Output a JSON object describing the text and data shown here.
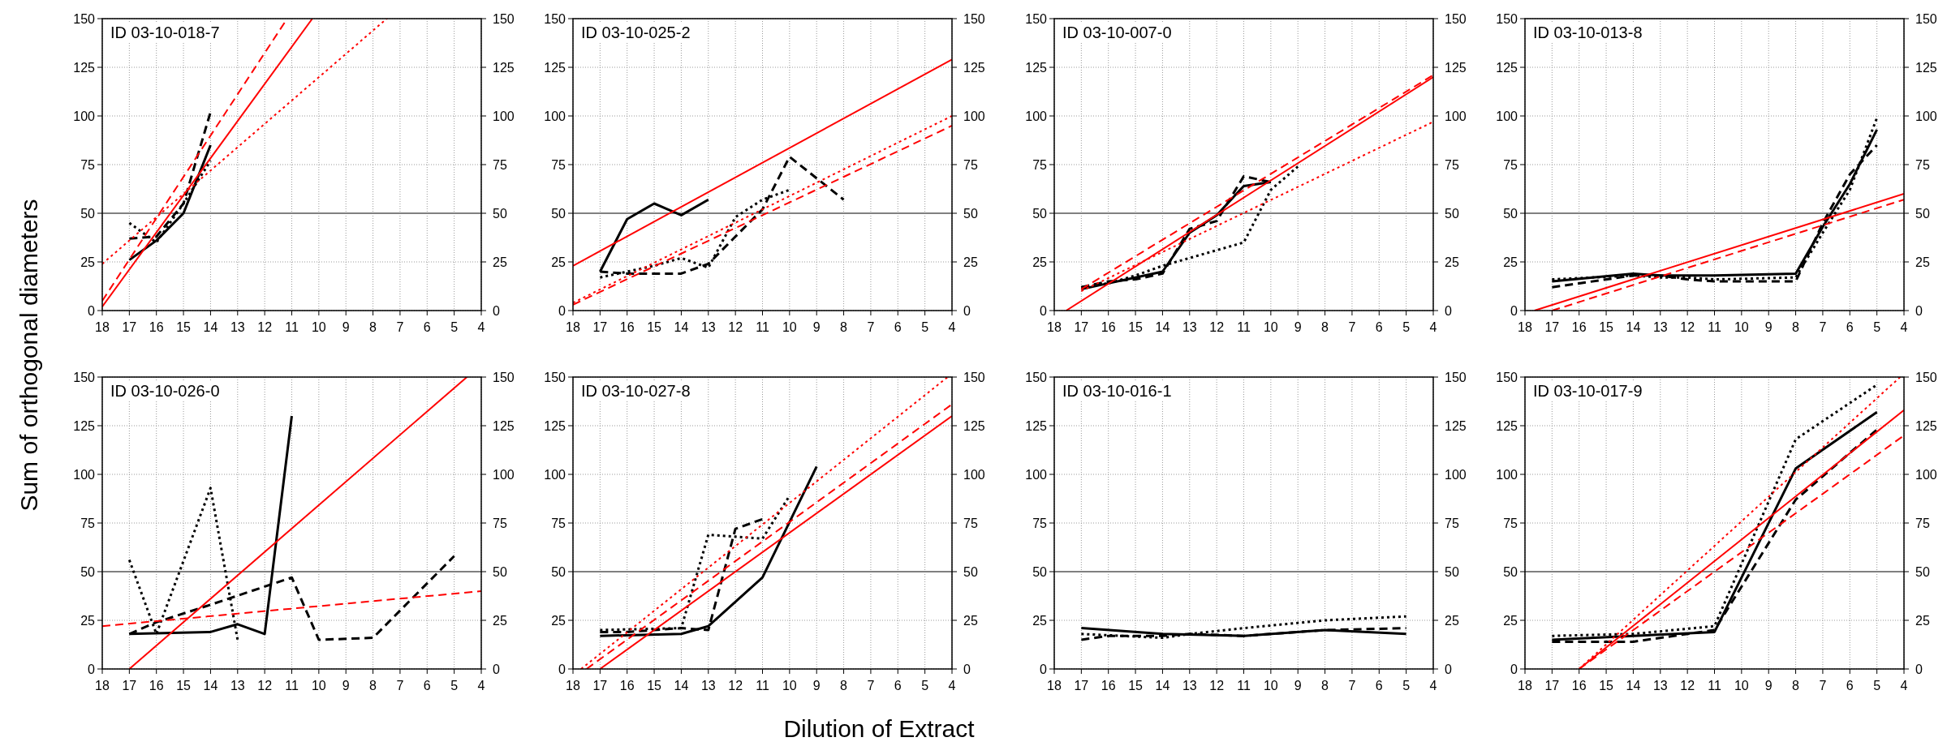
{
  "chart_data": [
    {
      "type": "line",
      "title": "ID 03-10-018-7",
      "ylabel": "Sum of orthogonal diameters",
      "xlim": [
        18,
        4
      ],
      "xticks": [
        18,
        17,
        16,
        15,
        14,
        13,
        12,
        11,
        10,
        9,
        8,
        7,
        6,
        5,
        4
      ],
      "ylim": [
        0,
        150
      ],
      "yticks": [
        0,
        25,
        50,
        75,
        100,
        125,
        150
      ],
      "y2lim": [
        0,
        150
      ],
      "y2ticks": [
        0,
        25,
        50,
        75,
        100,
        125,
        150
      ],
      "grid": true,
      "ref_lines": [
        {
          "axis": "y",
          "value": 50,
          "color": "#808080"
        }
      ],
      "series": [
        {
          "color": "#000000",
          "line_style": "solid",
          "x": [
            17,
            16,
            15,
            14
          ],
          "values": [
            26,
            36,
            50,
            85
          ]
        },
        {
          "color": "#000000",
          "line_style": "dashed",
          "x": [
            17,
            16,
            15,
            14
          ],
          "values": [
            37,
            38,
            55,
            102
          ]
        },
        {
          "color": "#000000",
          "line_style": "dotted",
          "x": [
            17,
            16,
            15,
            14
          ],
          "values": [
            45,
            35,
            55,
            77
          ]
        },
        {
          "color": "#ff0000",
          "line_style": "solid",
          "x": [
            18,
            10.24
          ],
          "values": [
            2,
            150
          ]
        },
        {
          "color": "#ff0000",
          "line_style": "dashed",
          "x": [
            18,
            11.17
          ],
          "values": [
            5,
            150
          ]
        },
        {
          "color": "#ff0000",
          "line_style": "dotted",
          "x": [
            18,
            7.49
          ],
          "values": [
            24,
            150
          ]
        }
      ]
    },
    {
      "type": "line",
      "title": "ID 03-10-025-2",
      "xlim": [
        18,
        4
      ],
      "xticks": [
        18,
        17,
        16,
        15,
        14,
        13,
        12,
        11,
        10,
        9,
        8,
        7,
        6,
        5,
        4
      ],
      "ylim": [
        0,
        150
      ],
      "yticks": [
        0,
        25,
        50,
        75,
        100,
        125,
        150
      ],
      "y2lim": [
        0,
        150
      ],
      "y2ticks": [
        0,
        25,
        50,
        75,
        100,
        125,
        150
      ],
      "grid": true,
      "ref_lines": [
        {
          "axis": "y",
          "value": 50,
          "color": "#808080"
        }
      ],
      "series": [
        {
          "color": "#000000",
          "line_style": "solid",
          "x": [
            17,
            16,
            15,
            14,
            13
          ],
          "values": [
            20,
            47,
            55,
            49,
            57
          ]
        },
        {
          "color": "#000000",
          "line_style": "dashed",
          "x": [
            17,
            16,
            15,
            14,
            13,
            12,
            11,
            10,
            8
          ],
          "values": [
            20,
            19,
            19,
            19,
            24,
            38,
            52,
            79,
            57
          ]
        },
        {
          "color": "#000000",
          "line_style": "dotted",
          "x": [
            17,
            16,
            15,
            14,
            13,
            12,
            11,
            10
          ],
          "values": [
            17,
            20,
            23,
            27,
            22,
            48,
            57,
            62
          ]
        },
        {
          "color": "#ff0000",
          "line_style": "solid",
          "x": [
            18,
            4
          ],
          "values": [
            23,
            129
          ]
        },
        {
          "color": "#ff0000",
          "line_style": "dashed",
          "x": [
            18,
            4
          ],
          "values": [
            3,
            95
          ]
        },
        {
          "color": "#ff0000",
          "line_style": "dotted",
          "x": [
            18,
            4
          ],
          "values": [
            4,
            100
          ]
        }
      ]
    },
    {
      "type": "line",
      "title": "ID 03-10-007-0",
      "xlim": [
        18,
        4
      ],
      "xticks": [
        18,
        17,
        16,
        15,
        14,
        13,
        12,
        11,
        10,
        9,
        8,
        7,
        6,
        5,
        4
      ],
      "ylim": [
        0,
        150
      ],
      "yticks": [
        0,
        25,
        50,
        75,
        100,
        125,
        150
      ],
      "y2lim": [
        0,
        150
      ],
      "y2ticks": [
        0,
        25,
        50,
        75,
        100,
        125,
        150
      ],
      "grid": true,
      "ref_lines": [
        {
          "axis": "y",
          "value": 50,
          "color": "#808080"
        }
      ],
      "series": [
        {
          "color": "#000000",
          "line_style": "solid",
          "x": [
            17,
            16,
            15,
            14,
            13,
            12,
            11,
            10
          ],
          "values": [
            11,
            14,
            17,
            20,
            40,
            49,
            64,
            66
          ]
        },
        {
          "color": "#000000",
          "line_style": "dashed",
          "x": [
            17,
            16,
            15,
            14,
            13,
            12,
            11,
            10
          ],
          "values": [
            12,
            15,
            16,
            19,
            42,
            46,
            69,
            66
          ]
        },
        {
          "color": "#000000",
          "line_style": "dotted",
          "x": [
            17,
            16,
            15,
            14,
            13,
            12,
            11,
            10,
            9
          ],
          "values": [
            12,
            14,
            18,
            23,
            27,
            31,
            35,
            62,
            74
          ]
        },
        {
          "color": "#ff0000",
          "line_style": "solid",
          "x": [
            17.56,
            4
          ],
          "values": [
            0,
            120
          ]
        },
        {
          "color": "#ff0000",
          "line_style": "dashed",
          "x": [
            17,
            4
          ],
          "values": [
            11,
            121
          ]
        },
        {
          "color": "#ff0000",
          "line_style": "dotted",
          "x": [
            17,
            4
          ],
          "values": [
            10,
            97
          ]
        }
      ]
    },
    {
      "type": "line",
      "title": "ID 03-10-013-8",
      "xlim": [
        18,
        4
      ],
      "xticks": [
        18,
        17,
        16,
        15,
        14,
        13,
        12,
        11,
        10,
        9,
        8,
        7,
        6,
        5,
        4
      ],
      "ylim": [
        0,
        150
      ],
      "yticks": [
        0,
        25,
        50,
        75,
        100,
        125,
        150
      ],
      "y2lim": [
        0,
        150
      ],
      "y2ticks": [
        0,
        25,
        50,
        75,
        100,
        125,
        150
      ],
      "grid": true,
      "ref_lines": [
        {
          "axis": "y",
          "value": 50,
          "color": "#808080"
        }
      ],
      "series": [
        {
          "color": "#000000",
          "line_style": "solid",
          "x": [
            17,
            14,
            13,
            11,
            8,
            7,
            6,
            5
          ],
          "values": [
            15,
            19,
            18,
            18,
            19,
            43,
            65,
            93
          ]
        },
        {
          "color": "#000000",
          "line_style": "dashed",
          "x": [
            17,
            14,
            13,
            12,
            11,
            8,
            7,
            6,
            5
          ],
          "values": [
            12,
            18,
            18,
            16,
            15,
            15,
            45,
            70,
            85
          ]
        },
        {
          "color": "#000000",
          "line_style": "dotted",
          "x": [
            17,
            14,
            13,
            12,
            11,
            8,
            7,
            6,
            5
          ],
          "values": [
            16,
            18,
            17,
            17,
            16,
            17,
            40,
            62,
            99
          ]
        },
        {
          "color": "#ff0000",
          "line_style": "solid",
          "x": [
            17.65,
            4
          ],
          "values": [
            0,
            60
          ]
        },
        {
          "color": "#ff0000",
          "line_style": "dashed",
          "x": [
            17,
            4
          ],
          "values": [
            0,
            57
          ]
        }
      ]
    },
    {
      "type": "line",
      "title": "ID 03-10-026-0",
      "xlim": [
        18,
        4
      ],
      "xticks": [
        18,
        17,
        16,
        15,
        14,
        13,
        12,
        11,
        10,
        9,
        8,
        7,
        6,
        5,
        4
      ],
      "ylim": [
        0,
        150
      ],
      "yticks": [
        0,
        25,
        50,
        75,
        100,
        125,
        150
      ],
      "y2lim": [
        0,
        150
      ],
      "y2ticks": [
        0,
        25,
        50,
        75,
        100,
        125,
        150
      ],
      "grid": true,
      "ref_lines": [
        {
          "axis": "y",
          "value": 50,
          "color": "#808080"
        }
      ],
      "series": [
        {
          "color": "#000000",
          "line_style": "solid",
          "x": [
            17,
            14,
            13,
            12,
            11
          ],
          "values": [
            18,
            19,
            23,
            18,
            130
          ]
        },
        {
          "color": "#000000",
          "line_style": "dashed",
          "x": [
            17,
            16,
            14,
            11,
            10,
            8,
            5
          ],
          "values": [
            18,
            24,
            33,
            47,
            15,
            16,
            58
          ]
        },
        {
          "color": "#000000",
          "line_style": "dotted",
          "x": [
            17,
            16,
            14,
            13
          ],
          "values": [
            56,
            18,
            93,
            15
          ]
        },
        {
          "color": "#ff0000",
          "line_style": "solid",
          "x": [
            17,
            4.53
          ],
          "values": [
            0,
            150
          ]
        },
        {
          "color": "#ff0000",
          "line_style": "dashed",
          "x": [
            18,
            4
          ],
          "values": [
            22,
            40
          ]
        }
      ]
    },
    {
      "type": "line",
      "title": "ID 03-10-027-8",
      "xlabel": "Dilution of Extract",
      "xlim": [
        18,
        4
      ],
      "xticks": [
        18,
        17,
        16,
        15,
        14,
        13,
        12,
        11,
        10,
        9,
        8,
        7,
        6,
        5,
        4
      ],
      "ylim": [
        0,
        150
      ],
      "yticks": [
        0,
        25,
        50,
        75,
        100,
        125,
        150
      ],
      "y2lim": [
        0,
        150
      ],
      "y2ticks": [
        0,
        25,
        50,
        75,
        100,
        125,
        150
      ],
      "grid": true,
      "ref_lines": [
        {
          "axis": "y",
          "value": 50,
          "color": "#808080"
        }
      ],
      "series": [
        {
          "color": "#000000",
          "line_style": "solid",
          "x": [
            17,
            14,
            13,
            11,
            9
          ],
          "values": [
            17,
            18,
            22,
            47,
            104
          ]
        },
        {
          "color": "#000000",
          "line_style": "dashed",
          "x": [
            17,
            16,
            15,
            14,
            13,
            12,
            11
          ],
          "values": [
            19,
            19,
            20,
            21,
            20,
            72,
            77
          ]
        },
        {
          "color": "#000000",
          "line_style": "dotted",
          "x": [
            17,
            14,
            13,
            12,
            11,
            10
          ],
          "values": [
            20,
            21,
            69,
            68,
            67,
            89
          ]
        },
        {
          "color": "#ff0000",
          "line_style": "solid",
          "x": [
            17,
            4
          ],
          "values": [
            0,
            130
          ]
        },
        {
          "color": "#ff0000",
          "line_style": "dashed",
          "x": [
            17.5,
            4
          ],
          "values": [
            0,
            136
          ]
        },
        {
          "color": "#ff0000",
          "line_style": "dotted",
          "x": [
            17.7,
            4.16
          ],
          "values": [
            0,
            150
          ]
        }
      ]
    },
    {
      "type": "line",
      "title": "ID 03-10-016-1",
      "xlim": [
        18,
        4
      ],
      "xticks": [
        18,
        17,
        16,
        15,
        14,
        13,
        12,
        11,
        10,
        9,
        8,
        7,
        6,
        5,
        4
      ],
      "ylim": [
        0,
        150
      ],
      "yticks": [
        0,
        25,
        50,
        75,
        100,
        125,
        150
      ],
      "y2lim": [
        0,
        150
      ],
      "y2ticks": [
        0,
        25,
        50,
        75,
        100,
        125,
        150
      ],
      "grid": true,
      "ref_lines": [
        {
          "axis": "y",
          "value": 50,
          "color": "#808080"
        }
      ],
      "series": [
        {
          "color": "#000000",
          "line_style": "solid",
          "x": [
            17,
            14,
            11,
            8,
            5
          ],
          "values": [
            21,
            18,
            17,
            20,
            18
          ]
        },
        {
          "color": "#000000",
          "line_style": "dashed",
          "x": [
            17,
            16,
            14,
            13,
            11,
            8,
            5
          ],
          "values": [
            15,
            17,
            17,
            18,
            17,
            20,
            21
          ]
        },
        {
          "color": "#000000",
          "line_style": "dotted",
          "x": [
            17,
            14,
            13,
            11,
            8,
            5
          ],
          "values": [
            18,
            16,
            18,
            21,
            25,
            27
          ]
        }
      ]
    },
    {
      "type": "line",
      "title": "ID 03-10-017-9",
      "xlim": [
        18,
        4
      ],
      "xticks": [
        18,
        17,
        16,
        15,
        14,
        13,
        12,
        11,
        10,
        9,
        8,
        7,
        6,
        5,
        4
      ],
      "ylim": [
        0,
        150
      ],
      "yticks": [
        0,
        25,
        50,
        75,
        100,
        125,
        150
      ],
      "y2lim": [
        0,
        150
      ],
      "y2ticks": [
        0,
        25,
        50,
        75,
        100,
        125,
        150
      ],
      "grid": true,
      "ref_lines": [
        {
          "axis": "y",
          "value": 50,
          "color": "#808080"
        }
      ],
      "series": [
        {
          "color": "#000000",
          "line_style": "solid",
          "x": [
            17,
            14,
            11,
            8,
            5
          ],
          "values": [
            15,
            17,
            19,
            103,
            132
          ]
        },
        {
          "color": "#000000",
          "line_style": "dashed",
          "x": [
            17,
            14,
            11,
            8,
            5
          ],
          "values": [
            14,
            14,
            20,
            87,
            123
          ]
        },
        {
          "color": "#000000",
          "line_style": "dotted",
          "x": [
            17,
            14,
            11,
            8,
            5
          ],
          "values": [
            17,
            18,
            22,
            118,
            146
          ]
        },
        {
          "color": "#ff0000",
          "line_style": "solid",
          "x": [
            16,
            4
          ],
          "values": [
            0,
            133
          ]
        },
        {
          "color": "#ff0000",
          "line_style": "dashed",
          "x": [
            16,
            4
          ],
          "values": [
            0,
            120
          ]
        },
        {
          "color": "#ff0000",
          "line_style": "dotted",
          "x": [
            16,
            4.14
          ],
          "values": [
            0,
            150
          ]
        }
      ]
    }
  ]
}
